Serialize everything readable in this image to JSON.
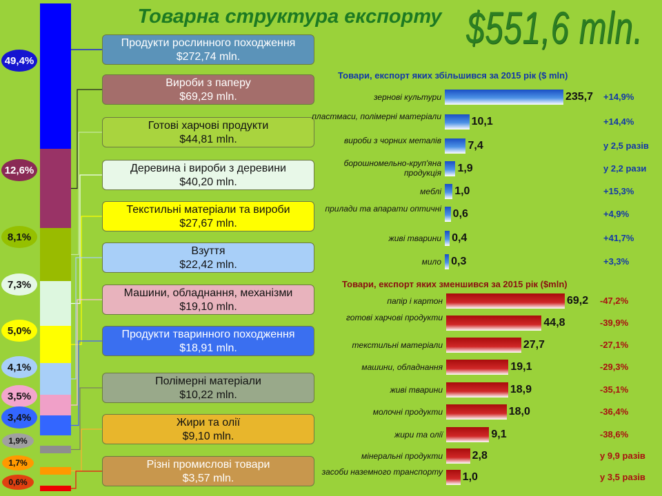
{
  "title": "Товарна структура експорту",
  "total": "$551,6 mln.",
  "structure": [
    {
      "name": "Продукти рослинного походження",
      "value": "$272,74 mln.",
      "pct": "49,4%",
      "share": 49.4,
      "color": "#0000ff",
      "box": "#5b93b9",
      "text": "#ffffff",
      "badge": "#1515d0",
      "badge_text": "#ffffff"
    },
    {
      "name": "Вироби з паперу",
      "value": "$69,29 mln.",
      "pct": "12,6%",
      "share": 12.6,
      "color": "#993366",
      "box": "#a46e6b",
      "text": "#ffffff",
      "badge": "#8a2a55",
      "badge_text": "#ffffff"
    },
    {
      "name": "Готові харчові продукти",
      "value": "$44,81 mln.",
      "pct": "8,1%",
      "share": 8.1,
      "color": "#99bb00",
      "box": "#a9d43e",
      "text": "#111111",
      "badge": "#95c000",
      "badge_text": "#111111"
    },
    {
      "name": "Деревина і вироби з деревини",
      "value": "$40,20 mln.",
      "pct": "7,3%",
      "share": 7.3,
      "color": "#ddf7df",
      "box": "#e8f8e8",
      "text": "#111111",
      "badge": "#e5f8e5",
      "badge_text": "#111111"
    },
    {
      "name": "Текстильні матеріали та вироби",
      "value": "$27,67 mln.",
      "pct": "5,0%",
      "share": 5.0,
      "color": "#ffff00",
      "box": "#ffff00",
      "text": "#111111",
      "badge": "#ffff00",
      "badge_text": "#111111"
    },
    {
      "name": "Взуття",
      "value": "$22,42 mln.",
      "pct": "4,1%",
      "share": 4.1,
      "color": "#a8cff8",
      "box": "#a8cff8",
      "text": "#111111",
      "badge": "#a8cff8",
      "badge_text": "#111111"
    },
    {
      "name": "Машини, обладнання, механізми",
      "value": "$19,10 mln.",
      "pct": "3,5%",
      "share": 3.5,
      "color": "#f0a0c8",
      "box": "#e8b3bd",
      "text": "#111111",
      "badge": "#f3a6cd",
      "badge_text": "#111111"
    },
    {
      "name": "Продукти тваринного походження",
      "value": "$18,91 mln.",
      "pct": "3,4%",
      "share": 3.4,
      "color": "#3366ff",
      "box": "#3a6ff0",
      "text": "#ffffff",
      "badge": "#3366ff",
      "badge_text": "#111111"
    },
    {
      "name": "Полімерні матеріали",
      "value": "$10,22 mln.",
      "pct": "1,9%",
      "share": 1.9,
      "color": "#8e8e8e",
      "box": "#99a98a",
      "text": "#111111",
      "badge": "#a0a0a0",
      "badge_text": "#111111"
    },
    {
      "name": "Жири та олії",
      "value": "$9,10 mln.",
      "pct": "1,7%",
      "share": 1.7,
      "color": "#ff9900",
      "box": "#e8b62c",
      "text": "#111111",
      "badge": "#ff9900",
      "badge_text": "#111111"
    },
    {
      "name": "Різні промислові товари",
      "value": "$3,57 mln.",
      "pct": "0,6%",
      "share": 0.6,
      "color": "#ee0000",
      "box": "#c8974d",
      "text": "#ffffff",
      "badge": "#e04010",
      "badge_text": "#111111"
    }
  ],
  "increased": {
    "title": "Товари, експорт яких збільшився за 2015 рік ($ mln)",
    "title_color": "#1238a8",
    "items": [
      {
        "label": "зернові культури",
        "value": 235.7,
        "value_text": "235,7",
        "change": "+14,9%"
      },
      {
        "label": "пластмаси, полімерні матеріали",
        "value": 10.1,
        "value_text": "10,1",
        "change": "+14,4%"
      },
      {
        "label": "вироби з чорних металів",
        "value": 7.4,
        "value_text": "7,4",
        "change": "у 2,5 разів"
      },
      {
        "label": "борошномельно-круп'яна продукція",
        "value": 1.9,
        "value_text": "1,9",
        "change": "у 2,2 рази"
      },
      {
        "label": "меблі",
        "value": 1.0,
        "value_text": "1,0",
        "change": "+15,3%"
      },
      {
        "label": "прилади та апарати оптичні",
        "value": 0.6,
        "value_text": "0,6",
        "change": "+4,9%"
      },
      {
        "label": "живі тварини",
        "value": 0.4,
        "value_text": "0,4",
        "change": "+41,7%"
      },
      {
        "label": "мило",
        "value": 0.3,
        "value_text": "0,3",
        "change": "+3,3%"
      }
    ]
  },
  "decreased": {
    "title": "Товари, експорт яких зменшився за 2015 рік ($mln)",
    "title_color": "#8a1010",
    "items": [
      {
        "label": "папір і картон",
        "value": 69.2,
        "value_text": "69,2",
        "change": "-47,2%"
      },
      {
        "label": "готові харчові продукти",
        "value": 44.8,
        "value_text": "44,8",
        "change": "-39,9%"
      },
      {
        "label": "текстильні матеріали",
        "value": 27.7,
        "value_text": "27,7",
        "change": "-27,1%"
      },
      {
        "label": "машини, обладнання",
        "value": 19.1,
        "value_text": "19,1",
        "change": "-29,3%"
      },
      {
        "label": "живі тварини",
        "value": 18.9,
        "value_text": "18,9",
        "change": "-35,1%"
      },
      {
        "label": "молочні продукти",
        "value": 18.0,
        "value_text": "18,0",
        "change": "-36,4%"
      },
      {
        "label": "жири та олії",
        "value": 9.1,
        "value_text": "9,1",
        "change": "-38,6%"
      },
      {
        "label": "мінеральні продукти",
        "value": 2.8,
        "value_text": "2,8",
        "change": "у 9,9 разів"
      },
      {
        "label": "засоби наземного транспорту",
        "value": 1.0,
        "value_text": "1,0",
        "change": "у 3,5 разів"
      }
    ]
  },
  "chart_data": [
    {
      "type": "bar",
      "title": "Товарна структура експорту",
      "categories": [
        "Продукти рослинного походження",
        "Вироби з паперу",
        "Готові харчові продукти",
        "Деревина і вироби з деревини",
        "Текстильні матеріали та вироби",
        "Взуття",
        "Машини, обладнання, механізми",
        "Продукти тваринного походження",
        "Полімерні матеріали",
        "Жири та олії",
        "Різні промислові товари"
      ],
      "values": [
        49.4,
        12.6,
        8.1,
        7.3,
        5.0,
        4.1,
        3.5,
        3.4,
        1.9,
        1.7,
        0.6
      ]
    },
    {
      "type": "bar",
      "title": "Товари, експорт яких збільшився за 2015 рік ($ mln)",
      "categories": [
        "зернові культури",
        "пластмаси, полімерні матеріали",
        "вироби з чорних металів",
        "борошномельно-круп'яна продукція",
        "меблі",
        "прилади та апарати оптичні",
        "живі тварини",
        "мило"
      ],
      "values": [
        235.7,
        10.1,
        7.4,
        1.9,
        1.0,
        0.6,
        0.4,
        0.3
      ]
    },
    {
      "type": "bar",
      "title": "Товари, експорт яких зменшився за 2015 рік ($mln)",
      "categories": [
        "папір і картон",
        "готові харчові продукти",
        "текстильні матеріали",
        "машини, обладнання",
        "живі тварини",
        "молочні продукти",
        "жири та олії",
        "мінеральні продукти",
        "засоби наземного транспорту"
      ],
      "values": [
        69.2,
        44.8,
        27.7,
        19.1,
        18.9,
        18.0,
        9.1,
        2.8,
        1.0
      ]
    }
  ]
}
